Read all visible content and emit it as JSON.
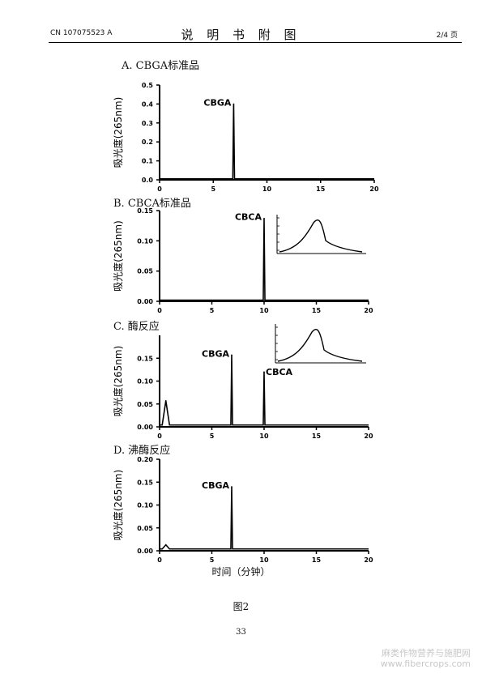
{
  "header": {
    "left": "CN 107075523 A",
    "center": "说 明 书 附 图",
    "right": "2/4 页"
  },
  "figure": {
    "caption": "图2",
    "xlabel": "时间（分钟）",
    "ylabel": "吸光度(265nm)",
    "page_number": "33"
  },
  "watermark": {
    "line1": "麻类作物营养与施肥网",
    "line2": "www.fibercrops.com"
  },
  "chart_data": [
    {
      "type": "line",
      "panel_label": "A.  CBGA标准品",
      "ylabel": "吸光度(265nm)",
      "xlim": [
        0,
        20
      ],
      "ylim": [
        0,
        0.5
      ],
      "x_ticks": [
        0,
        5,
        10,
        15,
        20
      ],
      "y_ticks": [
        "0.0",
        "0.1",
        "0.2",
        "0.3",
        "0.4",
        "0.5"
      ],
      "peaks": [
        {
          "label": "CBGA",
          "x": 6.9,
          "height": 0.4
        }
      ],
      "baseline": 0.005,
      "has_inset": false
    },
    {
      "type": "line",
      "panel_label": "B.  CBCA标准品",
      "ylabel": "吸光度(265nm)",
      "xlim": [
        0,
        20
      ],
      "ylim": [
        0,
        0.15
      ],
      "x_ticks": [
        0,
        5,
        10,
        15,
        20
      ],
      "y_ticks": [
        "0.00",
        "0.05",
        "0.10",
        "0.15"
      ],
      "peaks": [
        {
          "label": "CBCA",
          "x": 10.0,
          "height": 0.137
        }
      ],
      "baseline": 0.002,
      "has_inset": true
    },
    {
      "type": "line",
      "panel_label": "C.  酶反应",
      "ylabel": "吸光度(265nm)",
      "xlim": [
        0,
        20
      ],
      "ylim": [
        0,
        0.2
      ],
      "x_ticks": [
        0,
        5,
        10,
        15,
        20
      ],
      "y_ticks": [
        "0.00",
        "0.05",
        "0.10",
        "0.15"
      ],
      "peaks": [
        {
          "label": "",
          "x": 0.6,
          "height": 0.057
        },
        {
          "label": "CBGA",
          "x": 6.9,
          "height": 0.157
        },
        {
          "label": "CBCA",
          "x": 10.0,
          "height": 0.12
        }
      ],
      "baseline": 0.004,
      "has_inset": true
    },
    {
      "type": "line",
      "panel_label": "D.  沸酶反应",
      "ylabel": "吸光度(265nm)",
      "xlim": [
        0,
        20
      ],
      "ylim": [
        0,
        0.2
      ],
      "x_ticks": [
        0,
        5,
        10,
        15,
        20
      ],
      "y_ticks": [
        "0.00",
        "0.05",
        "0.10",
        "0.15",
        "0.20"
      ],
      "peaks": [
        {
          "label": "",
          "x": 0.6,
          "height": 0.013
        },
        {
          "label": "CBGA",
          "x": 6.9,
          "height": 0.14
        }
      ],
      "baseline": 0.004,
      "has_inset": false
    }
  ]
}
